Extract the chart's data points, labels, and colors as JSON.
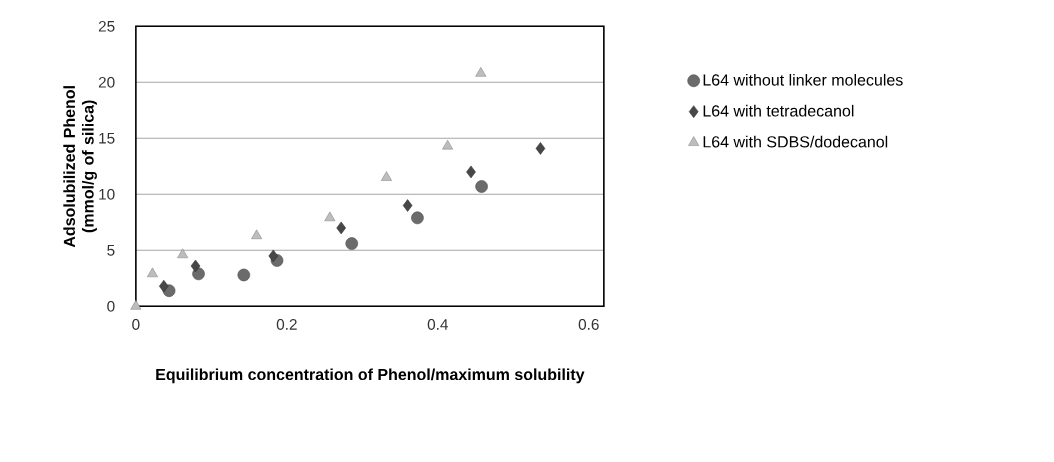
{
  "chart_data": {
    "type": "scatter",
    "xlabel": "Equilibrium concentration of Phenol/maximum solubility",
    "ylabel": "Adsolubilized Phenol (mmol/g of silica)",
    "xlim": [
      0,
      0.62
    ],
    "xticks": [
      0,
      0.2,
      0.4,
      0.6
    ],
    "ylim": [
      0,
      25
    ],
    "yticks": [
      0,
      5,
      10,
      15,
      20,
      25
    ],
    "grid": "y",
    "legend": "right",
    "series": [
      {
        "name": "L64 without linker molecules",
        "color": "#6b6b6b",
        "marker": "circle",
        "x": [
          0.044,
          0.083,
          0.143,
          0.187,
          0.286,
          0.373,
          0.458
        ],
        "values": [
          1.4,
          2.9,
          2.8,
          4.1,
          5.6,
          7.9,
          10.7
        ]
      },
      {
        "name": "L64 with tetradecanol",
        "color": "#474747",
        "marker": "diamond",
        "x": [
          0.037,
          0.079,
          0.182,
          0.272,
          0.36,
          0.444,
          0.536
        ],
        "values": [
          1.8,
          3.6,
          4.5,
          7.0,
          9.0,
          12.0,
          14.1
        ]
      },
      {
        "name": "L64 with SDBS/dodecanol",
        "color": "#bdbdbd",
        "marker": "triangle",
        "x": [
          0,
          0.022,
          0.062,
          0.16,
          0.257,
          0.332,
          0.413,
          0.457
        ],
        "values": [
          0,
          2.9,
          4.6,
          6.3,
          7.9,
          11.5,
          14.3,
          20.8
        ]
      }
    ]
  }
}
